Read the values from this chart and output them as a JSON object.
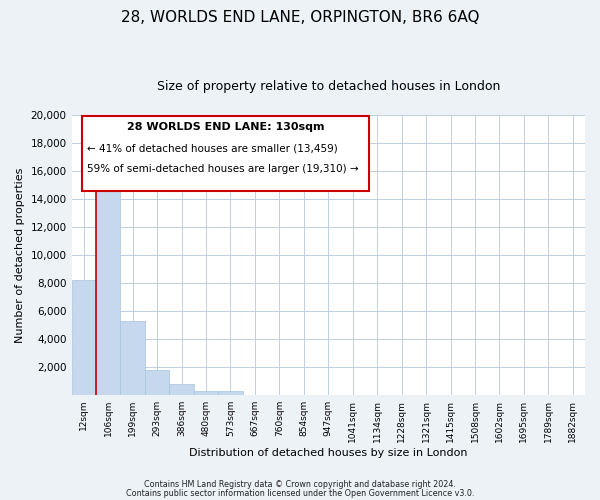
{
  "title": "28, WORLDS END LANE, ORPINGTON, BR6 6AQ",
  "subtitle": "Size of property relative to detached houses in London",
  "xlabel": "Distribution of detached houses by size in London",
  "ylabel": "Number of detached properties",
  "bar_labels": [
    "12sqm",
    "106sqm",
    "199sqm",
    "293sqm",
    "386sqm",
    "480sqm",
    "573sqm",
    "667sqm",
    "760sqm",
    "854sqm",
    "947sqm",
    "1041sqm",
    "1134sqm",
    "1228sqm",
    "1321sqm",
    "1415sqm",
    "1508sqm",
    "1602sqm",
    "1695sqm",
    "1789sqm",
    "1882sqm"
  ],
  "bar_heights": [
    8200,
    16600,
    5300,
    1750,
    750,
    275,
    275,
    0,
    0,
    0,
    0,
    0,
    0,
    0,
    0,
    0,
    0,
    0,
    0,
    0,
    0
  ],
  "bar_color": "#c5d8ed",
  "bar_edge_color": "#a8c4dc",
  "vline_x": 0.5,
  "vline_color": "#cc0000",
  "ylim": [
    0,
    20000
  ],
  "yticks": [
    0,
    2000,
    4000,
    6000,
    8000,
    10000,
    12000,
    14000,
    16000,
    18000,
    20000
  ],
  "annotation_title": "28 WORLDS END LANE: 130sqm",
  "annotation_line1": "← 41% of detached houses are smaller (13,459)",
  "annotation_line2": "59% of semi-detached houses are larger (19,310) →",
  "annotation_box_color": "#ffffff",
  "annotation_box_edge": "#cc0000",
  "footer1": "Contains HM Land Registry data © Crown copyright and database right 2024.",
  "footer2": "Contains public sector information licensed under the Open Government Licence v3.0.",
  "bg_color": "#edf2f7",
  "plot_bg_color": "#ffffff",
  "grid_color": "#c0cfe0"
}
